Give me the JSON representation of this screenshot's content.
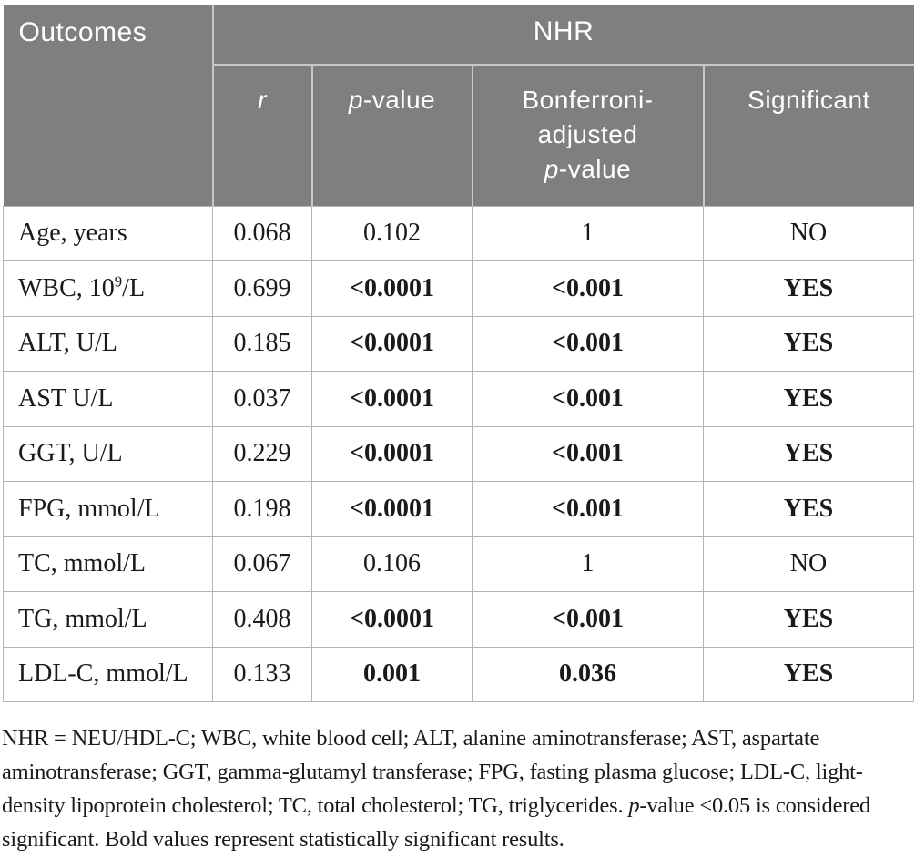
{
  "colors": {
    "header_bg": "#7e8080",
    "header_separator": "#c6c9c9",
    "body_border": "#b2b5b5",
    "text": "#1a1a1a"
  },
  "table": {
    "header": {
      "outcomes": "Outcomes",
      "nhr": "NHR",
      "r": [
        {
          "t": "r",
          "i": true
        }
      ],
      "p_value": [
        {
          "t": "p",
          "i": true
        },
        {
          "t": "-value"
        }
      ],
      "bonferroni": [
        {
          "t": "Bonferroni-"
        },
        {
          "br": true
        },
        {
          "t": "adjusted"
        },
        {
          "br": true
        },
        {
          "t": "p",
          "i": true
        },
        {
          "t": "-value"
        }
      ],
      "significant": "Significant"
    },
    "rows": [
      {
        "label": [
          {
            "t": "Age, years"
          }
        ],
        "r": "0.068",
        "p": "0.102",
        "bonf": "1",
        "sig": "NO",
        "bold": false
      },
      {
        "label": [
          {
            "t": "WBC, 10"
          },
          {
            "t": "9",
            "sup": true
          },
          {
            "t": "/L"
          }
        ],
        "r": "0.699",
        "p": "<0.0001",
        "bonf": "<0.001",
        "sig": "YES",
        "bold": true
      },
      {
        "label": [
          {
            "t": "ALT, U/L"
          }
        ],
        "r": "0.185",
        "p": "<0.0001",
        "bonf": "<0.001",
        "sig": "YES",
        "bold": true
      },
      {
        "label": [
          {
            "t": "AST U/L"
          }
        ],
        "r": "0.037",
        "p": "<0.0001",
        "bonf": "<0.001",
        "sig": "YES",
        "bold": true
      },
      {
        "label": [
          {
            "t": "GGT, U/L"
          }
        ],
        "r": "0.229",
        "p": "<0.0001",
        "bonf": "<0.001",
        "sig": "YES",
        "bold": true
      },
      {
        "label": [
          {
            "t": "FPG, mmol/L"
          }
        ],
        "r": "0.198",
        "p": "<0.0001",
        "bonf": "<0.001",
        "sig": "YES",
        "bold": true
      },
      {
        "label": [
          {
            "t": "TC, mmol/L"
          }
        ],
        "r": "0.067",
        "p": "0.106",
        "bonf": "1",
        "sig": "NO",
        "bold": false
      },
      {
        "label": [
          {
            "t": "TG, mmol/L"
          }
        ],
        "r": "0.408",
        "p": "<0.0001",
        "bonf": "<0.001",
        "sig": "YES",
        "bold": true
      },
      {
        "label": [
          {
            "t": "LDL-C, mmol/L"
          }
        ],
        "r": "0.133",
        "p": "0.001",
        "bonf": "0.036",
        "sig": "YES",
        "bold": true
      }
    ]
  },
  "footnote": {
    "segments": [
      {
        "t": "NHR = NEU/HDL-C; WBC, white blood cell; ALT, alanine aminotransferase; AST, aspartate aminotransferase; GGT, gamma-glutamyl transferase; FPG, fasting plasma glucose; LDL-C, light-density lipoprotein cholesterol; TC, total cholesterol; TG, triglycerides. "
      },
      {
        "t": "p",
        "i": true
      },
      {
        "t": "-value <0.05 is considered significant. Bold values represent statistically significant results."
      }
    ]
  }
}
